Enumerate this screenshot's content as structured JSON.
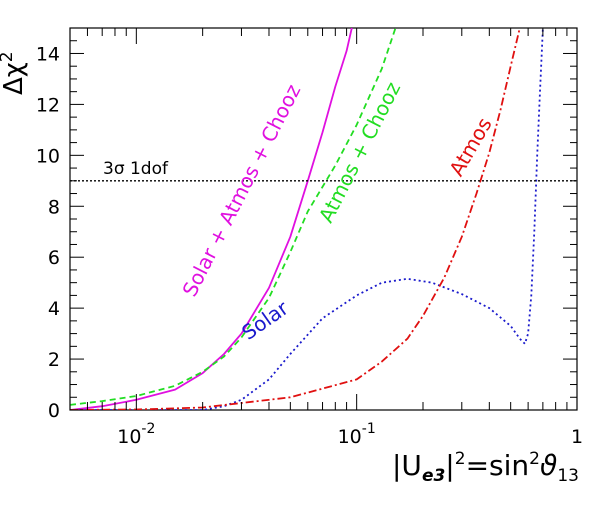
{
  "chart_data": {
    "type": "line",
    "xscale": "log",
    "xlim": [
      0.005,
      1
    ],
    "ylim": [
      0,
      15
    ],
    "xlabel": "|U_e3|² = sin²ϑ₁₃",
    "xlabel_parts": {
      "a": "|U",
      "b": "e3",
      "c": "|",
      "d": "2",
      "e": "=sin",
      "f": "2",
      "g": "ϑ",
      "h": "13"
    },
    "ylabel": "Δχ²",
    "ylabel_parts": {
      "a": "Δχ",
      "b": "2"
    },
    "x_ticks": [
      {
        "value": 0.01,
        "base": "10",
        "exp": "-2"
      },
      {
        "value": 0.1,
        "base": "10",
        "exp": "-1"
      },
      {
        "value": 1,
        "base": "1",
        "exp": ""
      }
    ],
    "y_ticks": [
      {
        "value": 0,
        "label": "0"
      },
      {
        "value": 2,
        "label": "2"
      },
      {
        "value": 4,
        "label": "4"
      },
      {
        "value": 6,
        "label": "6"
      },
      {
        "value": 8,
        "label": "8"
      },
      {
        "value": 10,
        "label": "10"
      },
      {
        "value": 12,
        "label": "12"
      },
      {
        "value": 14,
        "label": "14"
      }
    ],
    "reference_line": {
      "y": 9,
      "label": "3σ 1dof",
      "color": "#000000"
    },
    "series": [
      {
        "name": "Solar + Atmos + Chooz",
        "color": "#e010e0",
        "dash": "",
        "label_x": 0.032,
        "label_y": 8.5,
        "label_angle": 14,
        "points": [
          [
            0.005,
            0.0
          ],
          [
            0.007,
            0.15
          ],
          [
            0.01,
            0.4
          ],
          [
            0.015,
            0.8
          ],
          [
            0.02,
            1.45
          ],
          [
            0.025,
            2.2
          ],
          [
            0.03,
            3.0
          ],
          [
            0.04,
            4.8
          ],
          [
            0.05,
            6.8
          ],
          [
            0.06,
            9.0
          ],
          [
            0.07,
            10.9
          ],
          [
            0.08,
            12.7
          ],
          [
            0.09,
            14.1
          ],
          [
            0.095,
            15.0
          ]
        ]
      },
      {
        "name": "Atmos + Chooz",
        "color": "#22dd22",
        "dash": "6,4",
        "label_x": 0.11,
        "label_y": 10.0,
        "label_angle": 14,
        "points": [
          [
            0.005,
            0.2
          ],
          [
            0.007,
            0.35
          ],
          [
            0.01,
            0.55
          ],
          [
            0.015,
            0.95
          ],
          [
            0.02,
            1.5
          ],
          [
            0.025,
            2.1
          ],
          [
            0.03,
            2.85
          ],
          [
            0.04,
            4.4
          ],
          [
            0.05,
            6.2
          ],
          [
            0.06,
            7.8
          ],
          [
            0.08,
            9.6
          ],
          [
            0.1,
            11.2
          ],
          [
            0.13,
            13.4
          ],
          [
            0.15,
            15.0
          ]
        ]
      },
      {
        "name": "Solar",
        "color": "#1a1acc",
        "dash": "2,3",
        "label_x": 0.04,
        "label_y": 3.3,
        "label_angle": 38,
        "points": [
          [
            0.005,
            0.0
          ],
          [
            0.02,
            0.0
          ],
          [
            0.025,
            0.15
          ],
          [
            0.03,
            0.4
          ],
          [
            0.04,
            1.2
          ],
          [
            0.05,
            2.2
          ],
          [
            0.07,
            3.6
          ],
          [
            0.1,
            4.5
          ],
          [
            0.13,
            5.0
          ],
          [
            0.17,
            5.15
          ],
          [
            0.22,
            5.0
          ],
          [
            0.3,
            4.55
          ],
          [
            0.4,
            4.0
          ],
          [
            0.5,
            3.3
          ],
          [
            0.55,
            2.8
          ],
          [
            0.58,
            2.6
          ],
          [
            0.6,
            3.0
          ],
          [
            0.62,
            4.5
          ],
          [
            0.64,
            7.0
          ],
          [
            0.66,
            10.0
          ],
          [
            0.68,
            12.6
          ],
          [
            0.7,
            15.0
          ]
        ]
      },
      {
        "name": "Atmos",
        "color": "#e01010",
        "dash": "8,3,2,3",
        "label_x": 0.35,
        "label_y": 10.2,
        "label_angle": 38,
        "points": [
          [
            0.005,
            0.0
          ],
          [
            0.01,
            0.02
          ],
          [
            0.02,
            0.1
          ],
          [
            0.05,
            0.5
          ],
          [
            0.1,
            1.2
          ],
          [
            0.13,
            1.9
          ],
          [
            0.17,
            2.8
          ],
          [
            0.2,
            3.7
          ],
          [
            0.25,
            5.2
          ],
          [
            0.3,
            6.8
          ],
          [
            0.35,
            8.5
          ],
          [
            0.4,
            10.1
          ],
          [
            0.45,
            11.8
          ],
          [
            0.5,
            13.5
          ],
          [
            0.55,
            15.0
          ]
        ]
      }
    ]
  }
}
